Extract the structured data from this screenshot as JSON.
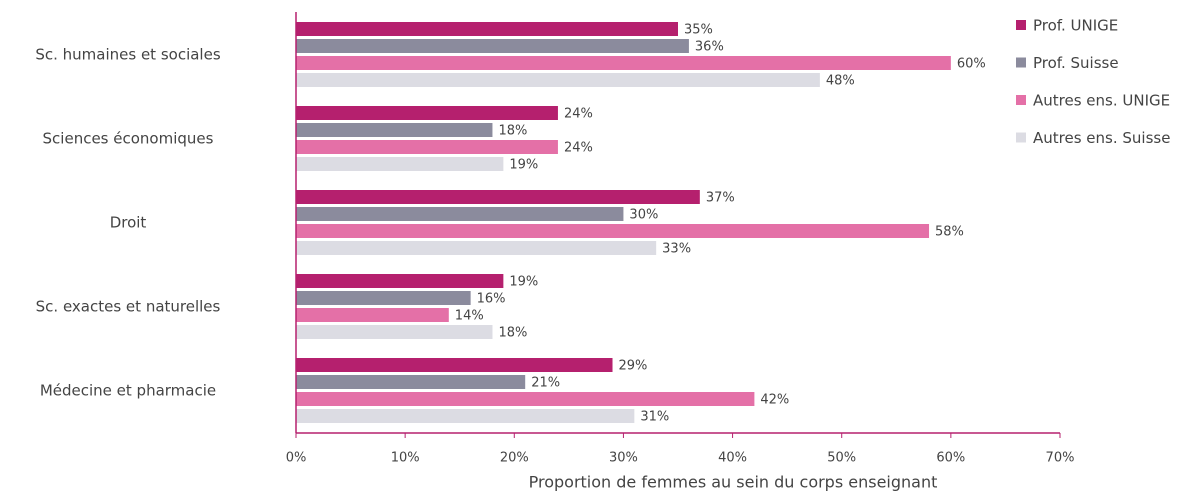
{
  "chart_data": {
    "type": "barh",
    "xlabel": "Proportion de femmes au sein du corps enseignant",
    "categories": [
      "Sc. humaines et sociales",
      "Sciences économiques",
      "Droit",
      "Sc. exactes et naturelles",
      "Médecine et pharmacie"
    ],
    "series": [
      {
        "name": "Prof. UNIGE",
        "color": "#b5206e",
        "values": [
          35,
          24,
          37,
          19,
          29
        ],
        "value_labels": [
          "35%",
          "24%",
          "37%",
          "19%",
          "29%"
        ]
      },
      {
        "name": "Prof. Suisse",
        "color": "#8b8b9d",
        "values": [
          36,
          18,
          30,
          16,
          21
        ],
        "value_labels": [
          "36%",
          "18%",
          "30%",
          "16%",
          "21%"
        ]
      },
      {
        "name": "Autres ens. UNIGE",
        "color": "#e470a7",
        "values": [
          60,
          24,
          58,
          14,
          42
        ],
        "value_labels": [
          "60%",
          "24%",
          "58%",
          "14%",
          "42%"
        ]
      },
      {
        "name": "Autres ens. Suisse",
        "color": "#dcdce3",
        "values": [
          48,
          19,
          33,
          18,
          31
        ],
        "value_labels": [
          "48%",
          "19%",
          "33%",
          "18%",
          "31%"
        ]
      }
    ],
    "xlim": [
      0,
      70
    ],
    "xticks": [
      {
        "value": 0,
        "label": "0%"
      },
      {
        "value": 10,
        "label": "10%"
      },
      {
        "value": 20,
        "label": "20%"
      },
      {
        "value": 30,
        "label": "30%"
      },
      {
        "value": 40,
        "label": "40%"
      },
      {
        "value": 50,
        "label": "50%"
      },
      {
        "value": 60,
        "label": "60%"
      },
      {
        "value": 70,
        "label": "70%"
      }
    ],
    "legend": "right"
  }
}
